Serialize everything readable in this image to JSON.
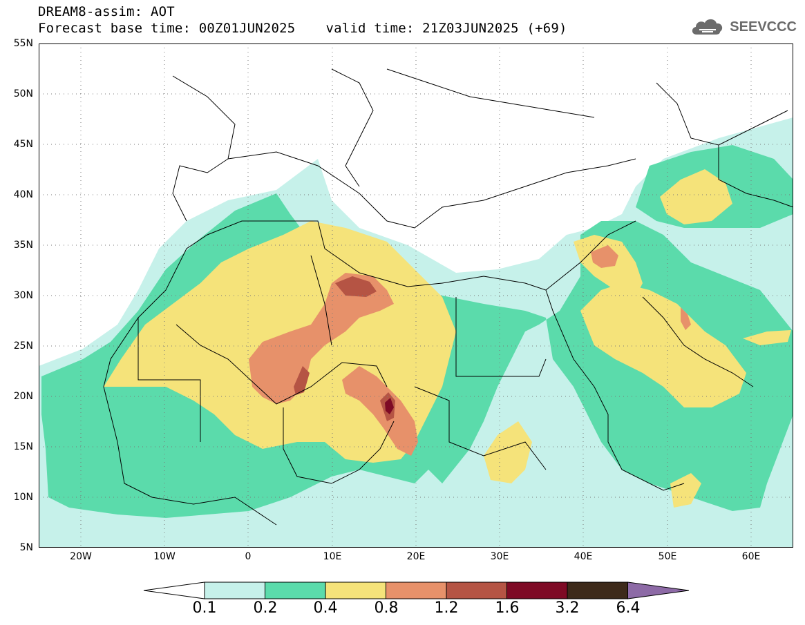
{
  "title": {
    "line1": "DREAM8-assim: AOT",
    "base_time": "Forecast base time: 00Z01JUN2025",
    "valid_time": "valid time: 21Z03JUN2025 (+69)"
  },
  "logo": {
    "text": "SEEVCCC",
    "icon": "cloud-icon"
  },
  "map": {
    "projection": "lat-lon",
    "lon_range": [
      -25,
      65
    ],
    "lat_range": [
      5,
      55
    ],
    "lat_labels": [
      "55N",
      "50N",
      "45N",
      "40N",
      "35N",
      "30N",
      "25N",
      "20N",
      "15N",
      "10N",
      "5N"
    ],
    "lon_labels": [
      "20W",
      "10W",
      "0",
      "10E",
      "20E",
      "30E",
      "40E",
      "50E",
      "60E"
    ],
    "gridlines": "dotted"
  },
  "colorbar": {
    "labels": [
      "0.1",
      "0.2",
      "0.4",
      "0.8",
      "1.2",
      "1.6",
      "3.2",
      "6.4"
    ],
    "colors": [
      "#ffffff",
      "#c6f1ea",
      "#5bdbab",
      "#f5e37a",
      "#e7916a",
      "#b55444",
      "#7e0a25",
      "#3d2a1a",
      "#8d6aa6"
    ]
  }
}
